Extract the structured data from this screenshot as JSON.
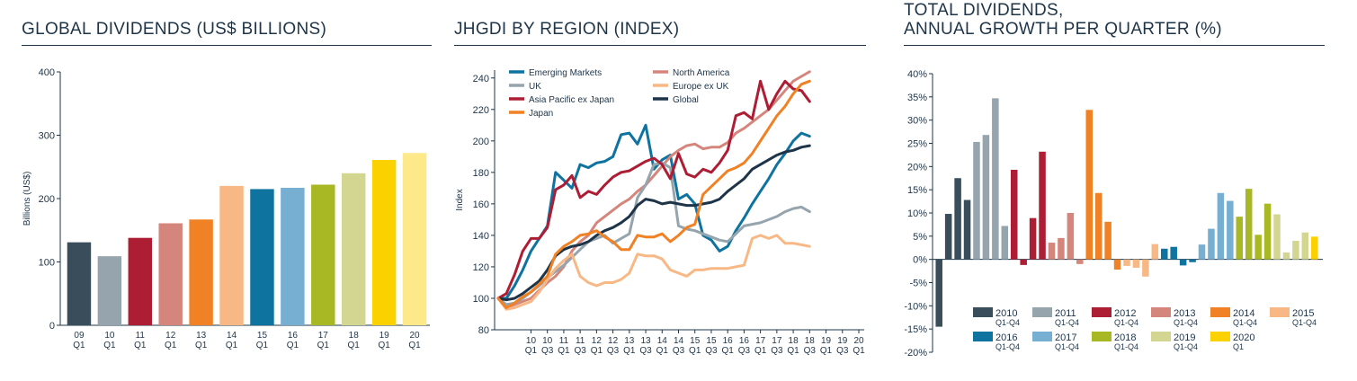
{
  "charts": [
    {
      "title_lines": [
        "GLOBAL DIVIDENDS (US$ BILLIONS)"
      ]
    },
    {
      "title_lines": [
        "JHGDI BY REGION (INDEX)"
      ]
    },
    {
      "title_lines": [
        "TOTAL DIVIDENDS,",
        "ANNUAL GROWTH PER QUARTER (%)"
      ]
    }
  ],
  "chart_data": [
    {
      "type": "bar",
      "title": "GLOBAL DIVIDENDS (US$ BILLIONS)",
      "xlabel": "",
      "ylabel": "Billions (US$)",
      "ylim": [
        0,
        400
      ],
      "yticks": [
        0,
        100,
        200,
        300,
        400
      ],
      "grid": false,
      "categories": [
        [
          "09",
          "Q1"
        ],
        [
          "10",
          "Q1"
        ],
        [
          "11",
          "Q1"
        ],
        [
          "12",
          "Q1"
        ],
        [
          "13",
          "Q1"
        ],
        [
          "14",
          "Q1"
        ],
        [
          "15",
          "Q1"
        ],
        [
          "16",
          "Q1"
        ],
        [
          "17",
          "Q1"
        ],
        [
          "18",
          "Q1"
        ],
        [
          "19",
          "Q1"
        ],
        [
          "20",
          "Q1"
        ]
      ],
      "values": [
        131,
        109,
        138,
        161,
        167,
        220,
        215,
        217,
        222,
        240,
        261,
        272
      ],
      "colors": [
        "#394d5a",
        "#95a4ad",
        "#ad1d34",
        "#d5867c",
        "#f08125",
        "#f8b885",
        "#0f73a0",
        "#76afd1",
        "#a8b825",
        "#d3d690",
        "#fcd100",
        "#fde88a"
      ]
    },
    {
      "type": "line",
      "title": "JHGDI BY REGION (INDEX)",
      "xlabel": "",
      "ylabel": "Index",
      "ylim": [
        80,
        245
      ],
      "yticks": [
        80,
        100,
        120,
        140,
        160,
        180,
        200,
        220,
        240
      ],
      "grid": false,
      "legend_position": "top",
      "x_ticks": [
        [
          "10",
          "Q1"
        ],
        [
          "10",
          "Q3"
        ],
        [
          "11",
          "Q1"
        ],
        [
          "11",
          "Q3"
        ],
        [
          "12",
          "Q1"
        ],
        [
          "12",
          "Q3"
        ],
        [
          "13",
          "Q1"
        ],
        [
          "13",
          "Q3"
        ],
        [
          "14",
          "Q1"
        ],
        [
          "14",
          "Q3"
        ],
        [
          "15",
          "Q1"
        ],
        [
          "15",
          "Q3"
        ],
        [
          "16",
          "Q1"
        ],
        [
          "16",
          "Q3"
        ],
        [
          "17",
          "Q1"
        ],
        [
          "17",
          "Q3"
        ],
        [
          "18",
          "Q1"
        ],
        [
          "18",
          "Q3"
        ],
        [
          "19",
          "Q1"
        ],
        [
          "19",
          "Q3"
        ],
        [
          "20",
          "Q1"
        ]
      ],
      "x_start": 2009.0,
      "x_step": 0.25,
      "series": [
        {
          "name": "Emerging Markets",
          "color": "#0f73a0",
          "values": [
            100,
            100,
            108,
            118,
            130,
            138,
            146,
            180,
            175,
            170,
            185,
            183,
            186,
            187,
            190,
            204,
            205,
            198,
            210,
            182,
            188,
            191,
            163,
            166,
            160,
            140,
            137,
            130,
            133,
            143,
            151,
            160,
            168,
            176,
            185,
            192,
            200,
            205,
            203
          ]
        },
        {
          "name": "North America",
          "color": "#d5867c",
          "values": [
            100,
            94,
            96,
            98,
            100,
            105,
            110,
            114,
            120,
            130,
            136,
            140,
            148,
            152,
            156,
            160,
            163,
            168,
            172,
            178,
            184,
            190,
            194,
            197,
            198,
            195,
            196,
            196,
            199,
            205,
            208,
            212,
            216,
            220,
            226,
            232,
            238,
            241,
            244
          ]
        },
        {
          "name": "UK",
          "color": "#95a4ad",
          "values": [
            100,
            96,
            97,
            100,
            104,
            108,
            113,
            117,
            121,
            126,
            131,
            136,
            138,
            140,
            135,
            138,
            141,
            164,
            172,
            185,
            186,
            183,
            146,
            144,
            143,
            141,
            139,
            137,
            136,
            141,
            146,
            147,
            148,
            150,
            152,
            155,
            157,
            158,
            155
          ]
        },
        {
          "name": "Europe ex UK",
          "color": "#f8b885",
          "values": [
            100,
            93,
            94,
            96,
            98,
            104,
            112,
            119,
            124,
            128,
            114,
            110,
            108,
            110,
            110,
            112,
            116,
            128,
            127,
            127,
            125,
            118,
            116,
            114,
            118,
            118,
            119,
            119,
            119,
            120,
            121,
            138,
            140,
            138,
            140,
            135,
            135,
            134,
            133
          ]
        },
        {
          "name": "Asia Pacific ex Japan",
          "color": "#ad1d34",
          "values": [
            100,
            103,
            115,
            130,
            138,
            138,
            145,
            169,
            172,
            178,
            164,
            168,
            166,
            172,
            177,
            180,
            181,
            184,
            187,
            189,
            185,
            176,
            192,
            179,
            177,
            182,
            180,
            186,
            194,
            216,
            218,
            214,
            238,
            220,
            230,
            238,
            233,
            232,
            225
          ]
        },
        {
          "name": "Global",
          "color": "#1e3448",
          "values": [
            100,
            99,
            100,
            103,
            107,
            111,
            118,
            127,
            131,
            133,
            134,
            136,
            140,
            143,
            145,
            148,
            152,
            159,
            163,
            162,
            160,
            161,
            160,
            159,
            159,
            160,
            161,
            163,
            168,
            172,
            176,
            182,
            185,
            188,
            191,
            193,
            194,
            196,
            197
          ]
        },
        {
          "name": "Japan",
          "color": "#f08125",
          "values": [
            100,
            94,
            97,
            101,
            104,
            109,
            114,
            128,
            133,
            136,
            140,
            141,
            143,
            139,
            136,
            131,
            131,
            140,
            139,
            139,
            141,
            136,
            140,
            145,
            147,
            166,
            171,
            176,
            181,
            183,
            186,
            192,
            200,
            208,
            216,
            222,
            230,
            236,
            238
          ]
        }
      ]
    },
    {
      "type": "bar",
      "title": "TOTAL DIVIDENDS, ANNUAL GROWTH PER QUARTER (%)",
      "xlabel": "",
      "ylabel": "",
      "ylim": [
        -20,
        40
      ],
      "yticks": [
        -20,
        -15,
        -10,
        -5,
        0,
        5,
        10,
        15,
        20,
        25,
        30,
        35,
        40
      ],
      "tick_labels": [
        "-20%",
        "-15%",
        "-10%",
        "-5%",
        "0%",
        "5%",
        "10%",
        "15%",
        "20%",
        "25%",
        "30%",
        "35%",
        "40%"
      ],
      "grid": false,
      "legend_position": "bottom",
      "groups": [
        {
          "name": "2010",
          "sub": "Q1-Q4",
          "color": "#394d5a",
          "values": [
            -14.5,
            9.8,
            17.5,
            12.8
          ]
        },
        {
          "name": "2011",
          "sub": "Q1-Q4",
          "color": "#95a4ad",
          "values": [
            25.3,
            26.8,
            34.7,
            7.2
          ]
        },
        {
          "name": "2012",
          "sub": "Q1-Q4",
          "color": "#ad1d34",
          "values": [
            19.3,
            -1.2,
            8.9,
            23.2
          ]
        },
        {
          "name": "2013",
          "sub": "Q1-Q4",
          "color": "#d5867c",
          "values": [
            3.6,
            4.6,
            10.0,
            -1.0
          ]
        },
        {
          "name": "2014",
          "sub": "Q1-Q4",
          "color": "#f08125",
          "values": [
            32.2,
            14.3,
            8.1,
            -2.2
          ]
        },
        {
          "name": "2015",
          "sub": "Q1-Q4",
          "color": "#f8b885",
          "values": [
            -1.4,
            -1.8,
            -3.7,
            3.3
          ]
        },
        {
          "name": "2016",
          "sub": "Q1-Q4",
          "color": "#0f73a0",
          "values": [
            2.3,
            2.7,
            -1.3,
            -0.6
          ]
        },
        {
          "name": "2017",
          "sub": "Q1-Q4",
          "color": "#76afd1",
          "values": [
            3.2,
            6.6,
            14.3,
            12.6
          ]
        },
        {
          "name": "2018",
          "sub": "Q1-Q4",
          "color": "#a8b825",
          "values": [
            9.2,
            15.2,
            5.3,
            12.0
          ]
        },
        {
          "name": "2019",
          "sub": "Q1-Q4",
          "color": "#d3d690",
          "values": [
            9.7,
            1.5,
            4.0,
            5.8
          ]
        },
        {
          "name": "2020",
          "sub": "Q1",
          "color": "#fcd100",
          "values": [
            4.9
          ]
        }
      ]
    }
  ]
}
